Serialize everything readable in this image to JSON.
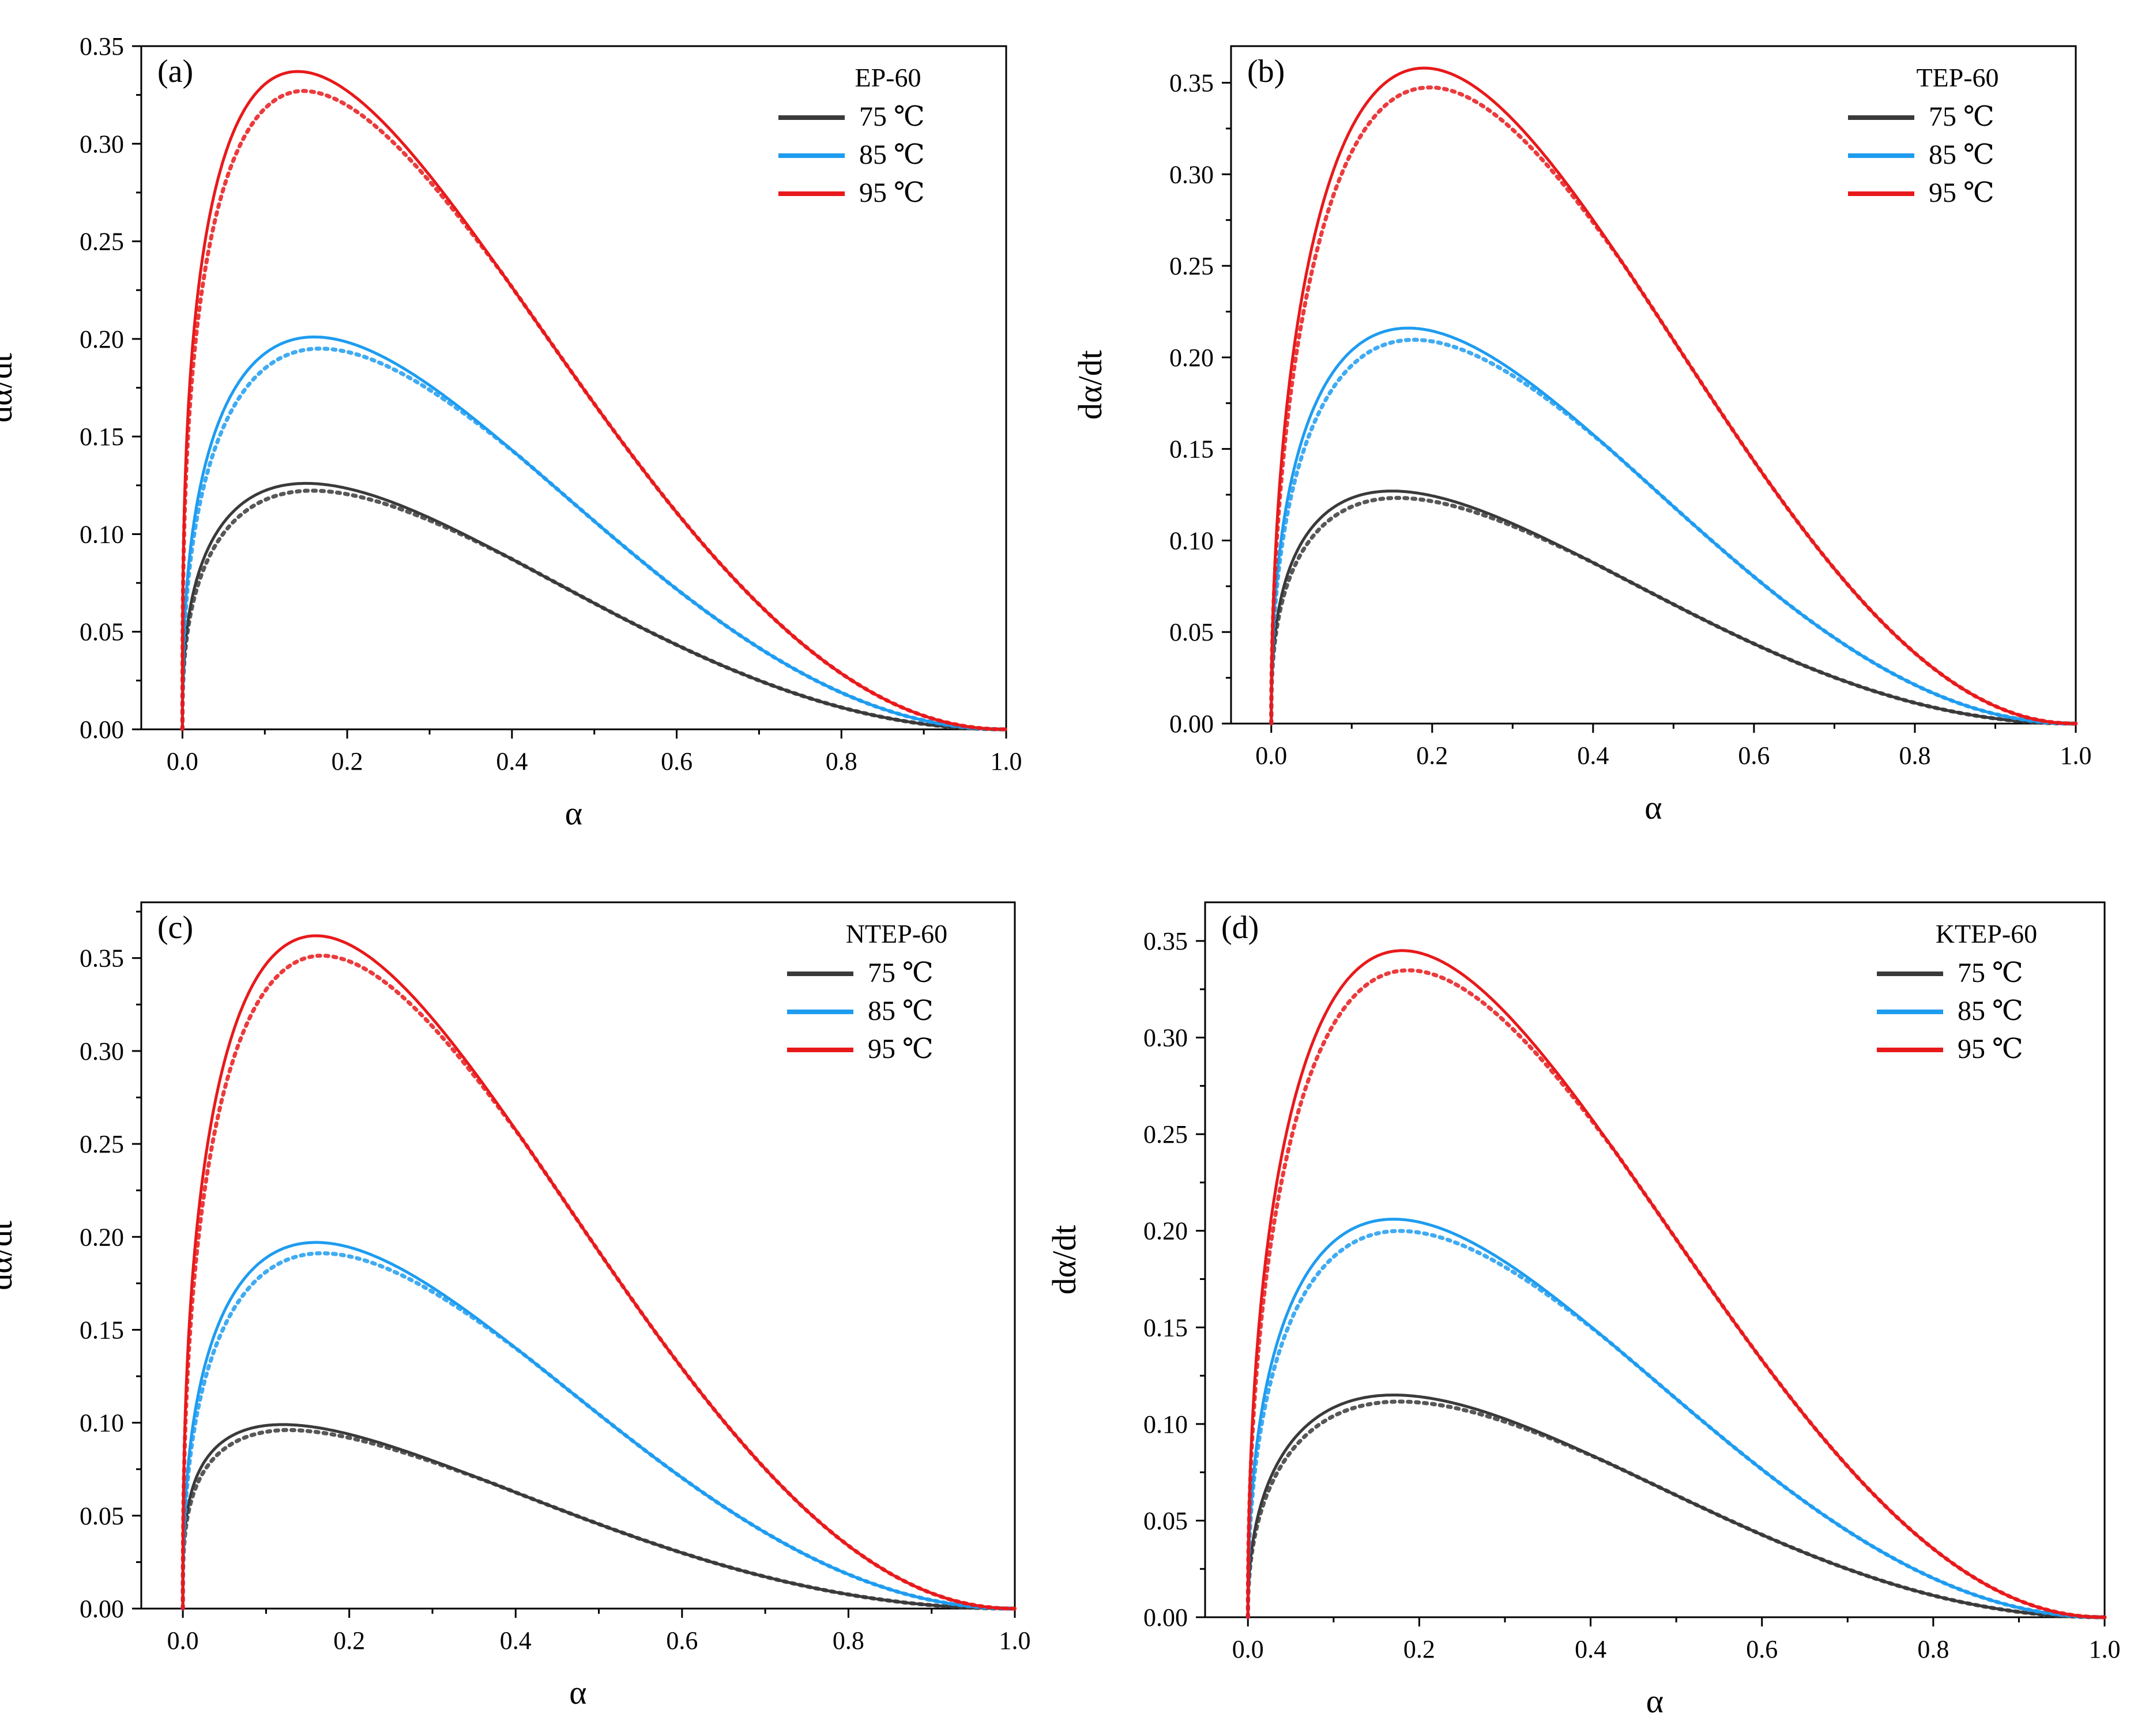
{
  "figure": {
    "description_panels": [
      "(a)",
      "(b)",
      "(c)",
      "(d)"
    ]
  },
  "colors": {
    "75": "#3a3a3a",
    "85": "#1e9cf0",
    "95": "#e8191b"
  },
  "chart_data": [
    {
      "type": "line",
      "panel_label": "(a)",
      "legend_title": "EP-60",
      "xlabel": "α",
      "ylabel": "dα/dt",
      "xlim": [
        -0.05,
        1.0
      ],
      "ylim": [
        0.0,
        0.35
      ],
      "xticks": [
        "0.0",
        "0.2",
        "0.4",
        "0.6",
        "0.8",
        "1.0"
      ],
      "yticks": [
        "0.00",
        "0.05",
        "0.10",
        "0.15",
        "0.20",
        "0.25",
        "0.30",
        "0.35"
      ],
      "series": [
        {
          "name": "75 ℃",
          "temp": "75",
          "peak_alpha": 0.15,
          "peak": 0.126
        },
        {
          "name": "85 ℃",
          "temp": "85",
          "peak_alpha": 0.16,
          "peak": 0.201
        },
        {
          "name": "95 ℃",
          "temp": "95",
          "peak_alpha": 0.14,
          "peak": 0.337
        }
      ]
    },
    {
      "type": "line",
      "panel_label": "(b)",
      "legend_title": "TEP-60",
      "xlabel": "α",
      "ylabel": "dα/dt",
      "xlim": [
        -0.05,
        1.0
      ],
      "ylim": [
        0.0,
        0.37
      ],
      "xticks": [
        "0.0",
        "0.2",
        "0.4",
        "0.6",
        "0.8",
        "1.0"
      ],
      "yticks": [
        "0.00",
        "0.05",
        "0.10",
        "0.15",
        "0.20",
        "0.25",
        "0.30",
        "0.35"
      ],
      "series": [
        {
          "name": "75 ℃",
          "temp": "75",
          "peak_alpha": 0.15,
          "peak": 0.127
        },
        {
          "name": "85 ℃",
          "temp": "85",
          "peak_alpha": 0.17,
          "peak": 0.216
        },
        {
          "name": "95 ℃",
          "temp": "95",
          "peak_alpha": 0.19,
          "peak": 0.358
        }
      ]
    },
    {
      "type": "line",
      "panel_label": "(c)",
      "legend_title": "NTEP-60",
      "xlabel": "α",
      "ylabel": "dα/dt",
      "xlim": [
        -0.05,
        1.0
      ],
      "ylim": [
        0.0,
        0.38
      ],
      "xticks": [
        "0.0",
        "0.2",
        "0.4",
        "0.6",
        "0.8",
        "1.0"
      ],
      "yticks": [
        "0.00",
        "0.05",
        "0.10",
        "0.15",
        "0.20",
        "0.25",
        "0.30",
        "0.35"
      ],
      "series": [
        {
          "name": "75 ℃",
          "temp": "75",
          "peak_alpha": 0.12,
          "peak": 0.099
        },
        {
          "name": "85 ℃",
          "temp": "85",
          "peak_alpha": 0.16,
          "peak": 0.197
        },
        {
          "name": "95 ℃",
          "temp": "95",
          "peak_alpha": 0.16,
          "peak": 0.362
        }
      ]
    },
    {
      "type": "line",
      "panel_label": "(d)",
      "legend_title": "KTEP-60",
      "xlabel": "α",
      "ylabel": "dα/dt",
      "xlim": [
        -0.05,
        1.0
      ],
      "ylim": [
        0.0,
        0.37
      ],
      "xticks": [
        "0.0",
        "0.2",
        "0.4",
        "0.6",
        "0.8",
        "1.0"
      ],
      "yticks": [
        "0.00",
        "0.05",
        "0.10",
        "0.15",
        "0.20",
        "0.25",
        "0.30",
        "0.35"
      ],
      "series": [
        {
          "name": "75 ℃",
          "temp": "75",
          "peak_alpha": 0.17,
          "peak": 0.115
        },
        {
          "name": "85 ℃",
          "temp": "85",
          "peak_alpha": 0.17,
          "peak": 0.206
        },
        {
          "name": "95 ℃",
          "temp": "95",
          "peak_alpha": 0.18,
          "peak": 0.345
        }
      ]
    }
  ]
}
